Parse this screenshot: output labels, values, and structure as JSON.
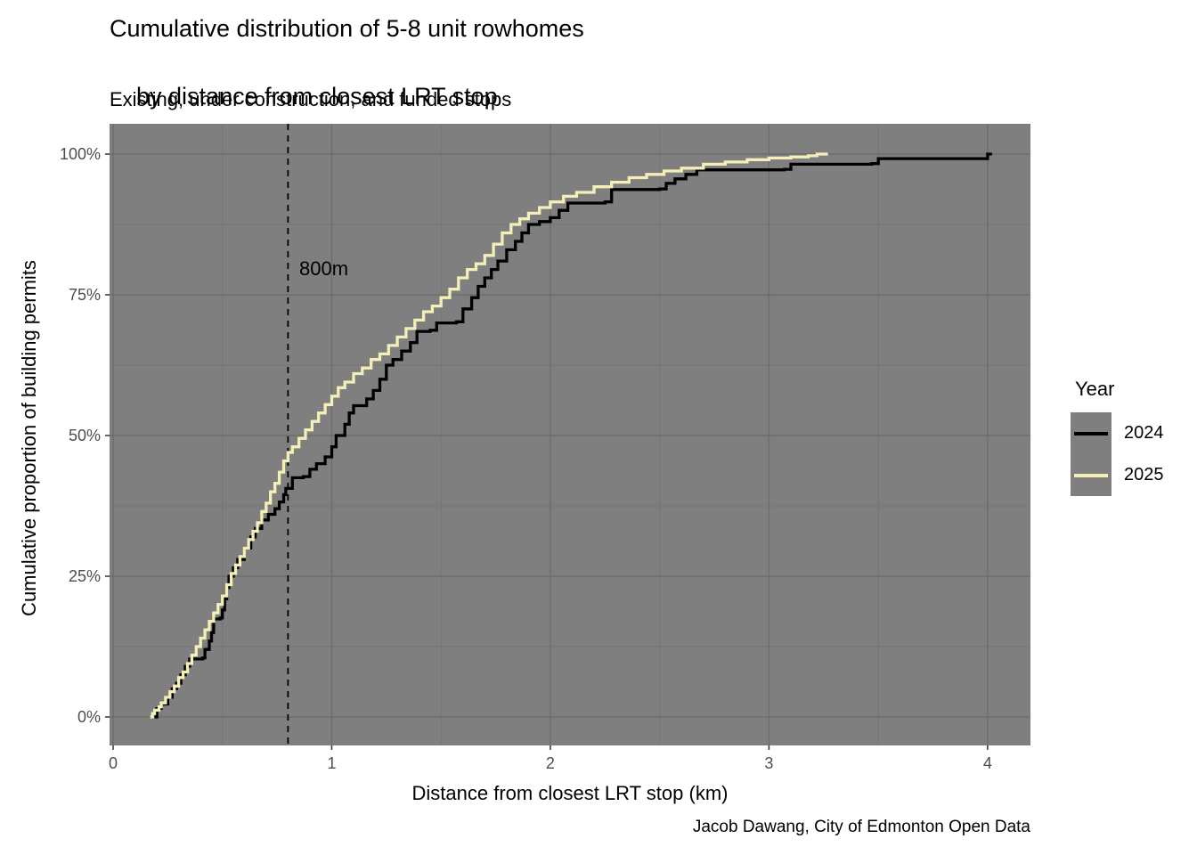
{
  "header": {
    "title_line1": "Cumulative distribution of 5-8 unit rowhomes",
    "title_line2": "by distance from closest LRT stop",
    "subtitle": "Existing, under construction, and funded stops"
  },
  "axes": {
    "x_title": "Distance from closest LRT stop (km)",
    "y_title": "Cumulative proportion of building permits"
  },
  "annotation": {
    "label": "800m"
  },
  "legend": {
    "title": "Year",
    "entries": [
      {
        "label": "2024",
        "color": "#000000"
      },
      {
        "label": "2025",
        "color": "#F3EFB7"
      }
    ]
  },
  "caption": "Jacob Dawang, City of Edmonton Open Data",
  "colors": {
    "panel_background": "#7F7F7F",
    "grid_major": "#6D6D6D",
    "grid_minor": "#747474",
    "tick_mark": "#333333",
    "tick_label": "#4D4D4D",
    "vline": "#000000",
    "series_2024": "#000000",
    "series_2025": "#F3EFB7"
  },
  "chart_data": {
    "type": "line",
    "subtype": "ecdf-step",
    "title": "Cumulative distribution of 5-8 unit rowhomes by distance from closest LRT stop",
    "subtitle": "Existing, under construction, and funded stops",
    "xlabel": "Distance from closest LRT stop (km)",
    "ylabel": "Cumulative proportion of building permits",
    "xlim": [
      -0.0163,
      4.196
    ],
    "ylim_pct": [
      -5.06,
      105.38
    ],
    "x_major_ticks": [
      0,
      1,
      2,
      3,
      4
    ],
    "x_tick_labels": [
      "0",
      "1",
      "2",
      "3",
      "4"
    ],
    "x_minor_ticks": [
      0.5,
      1.5,
      2.5,
      3.5
    ],
    "y_major_ticks": [
      0,
      25,
      50,
      75,
      100
    ],
    "y_tick_labels": [
      "0%",
      "25%",
      "50%",
      "75%",
      "100%"
    ],
    "y_minor_ticks": [
      12.5,
      37.5,
      62.5,
      87.5
    ],
    "grid": true,
    "legend_position": "right",
    "vline": {
      "x": 0.8,
      "label": "800m",
      "style": "dashed",
      "color": "#000000"
    },
    "series": [
      {
        "name": "2024",
        "color": "#000000",
        "points": [
          [
            0.19,
            0
          ],
          [
            0.2,
            1.5
          ],
          [
            0.22,
            2.3
          ],
          [
            0.25,
            3.5
          ],
          [
            0.27,
            5
          ],
          [
            0.29,
            6
          ],
          [
            0.31,
            7.5
          ],
          [
            0.33,
            9
          ],
          [
            0.35,
            10.3
          ],
          [
            0.41,
            10.5
          ],
          [
            0.42,
            12
          ],
          [
            0.44,
            13.5
          ],
          [
            0.45,
            15
          ],
          [
            0.46,
            17.4
          ],
          [
            0.49,
            17.6
          ],
          [
            0.5,
            19
          ],
          [
            0.51,
            21
          ],
          [
            0.52,
            23
          ],
          [
            0.53,
            25
          ],
          [
            0.55,
            26.5
          ],
          [
            0.57,
            28
          ],
          [
            0.6,
            30
          ],
          [
            0.63,
            32
          ],
          [
            0.65,
            33.5
          ],
          [
            0.68,
            35
          ],
          [
            0.71,
            36
          ],
          [
            0.74,
            37
          ],
          [
            0.76,
            38.2
          ],
          [
            0.78,
            39.5
          ],
          [
            0.79,
            40.6
          ],
          [
            0.82,
            42.5
          ],
          [
            0.87,
            42.7
          ],
          [
            0.9,
            44
          ],
          [
            0.93,
            45
          ],
          [
            0.97,
            46.2
          ],
          [
            1.0,
            48
          ],
          [
            1.02,
            50
          ],
          [
            1.06,
            52
          ],
          [
            1.08,
            54
          ],
          [
            1.1,
            55.3
          ],
          [
            1.16,
            56.5
          ],
          [
            1.19,
            58
          ],
          [
            1.22,
            60
          ],
          [
            1.25,
            62.5
          ],
          [
            1.28,
            63.5
          ],
          [
            1.32,
            65
          ],
          [
            1.36,
            66.5
          ],
          [
            1.39,
            68.5
          ],
          [
            1.45,
            68.7
          ],
          [
            1.48,
            70
          ],
          [
            1.57,
            70.2
          ],
          [
            1.6,
            72.5
          ],
          [
            1.64,
            74.5
          ],
          [
            1.67,
            76.5
          ],
          [
            1.7,
            78
          ],
          [
            1.73,
            79.5
          ],
          [
            1.76,
            81
          ],
          [
            1.8,
            83
          ],
          [
            1.84,
            84.5
          ],
          [
            1.87,
            86
          ],
          [
            1.9,
            87.5
          ],
          [
            1.95,
            88
          ],
          [
            2.0,
            88.7
          ],
          [
            2.04,
            90
          ],
          [
            2.08,
            91.3
          ],
          [
            2.25,
            91.5
          ],
          [
            2.28,
            93.7
          ],
          [
            2.5,
            93.8
          ],
          [
            2.53,
            94.8
          ],
          [
            2.57,
            95.6
          ],
          [
            2.62,
            96.4
          ],
          [
            2.67,
            97.2
          ],
          [
            3.07,
            97.3
          ],
          [
            3.1,
            98.2
          ],
          [
            3.47,
            98.3
          ],
          [
            3.5,
            99.2
          ],
          [
            4.0,
            100
          ],
          [
            4.02,
            100
          ]
        ]
      },
      {
        "name": "2025",
        "color": "#F3EFB7",
        "points": [
          [
            0.17,
            0
          ],
          [
            0.18,
            0.6
          ],
          [
            0.19,
            1.2
          ],
          [
            0.21,
            1.8
          ],
          [
            0.22,
            2.5
          ],
          [
            0.24,
            3.5
          ],
          [
            0.26,
            4.5
          ],
          [
            0.28,
            5.5
          ],
          [
            0.3,
            7
          ],
          [
            0.32,
            8
          ],
          [
            0.34,
            9.5
          ],
          [
            0.36,
            11
          ],
          [
            0.38,
            12.5
          ],
          [
            0.4,
            14
          ],
          [
            0.42,
            15.5
          ],
          [
            0.44,
            17
          ],
          [
            0.46,
            18.5
          ],
          [
            0.48,
            20
          ],
          [
            0.5,
            21.5
          ],
          [
            0.52,
            23.5
          ],
          [
            0.54,
            25.5
          ],
          [
            0.56,
            27
          ],
          [
            0.58,
            28.5
          ],
          [
            0.6,
            30
          ],
          [
            0.62,
            31.5
          ],
          [
            0.64,
            33
          ],
          [
            0.66,
            34.5
          ],
          [
            0.68,
            36.5
          ],
          [
            0.7,
            38
          ],
          [
            0.72,
            40
          ],
          [
            0.74,
            41.5
          ],
          [
            0.76,
            43.5
          ],
          [
            0.78,
            45.5
          ],
          [
            0.8,
            47
          ],
          [
            0.82,
            48
          ],
          [
            0.85,
            49.5
          ],
          [
            0.88,
            51
          ],
          [
            0.91,
            52.5
          ],
          [
            0.94,
            54
          ],
          [
            0.97,
            55.5
          ],
          [
            1.0,
            57
          ],
          [
            1.03,
            58.5
          ],
          [
            1.06,
            59.5
          ],
          [
            1.1,
            61
          ],
          [
            1.14,
            62
          ],
          [
            1.18,
            63.5
          ],
          [
            1.22,
            64.5
          ],
          [
            1.26,
            66
          ],
          [
            1.3,
            67.5
          ],
          [
            1.34,
            69
          ],
          [
            1.38,
            70.5
          ],
          [
            1.42,
            72
          ],
          [
            1.46,
            73
          ],
          [
            1.5,
            74.5
          ],
          [
            1.54,
            76
          ],
          [
            1.58,
            78
          ],
          [
            1.62,
            79.5
          ],
          [
            1.66,
            80.5
          ],
          [
            1.7,
            82
          ],
          [
            1.74,
            84
          ],
          [
            1.78,
            86
          ],
          [
            1.82,
            87.5
          ],
          [
            1.86,
            88.5
          ],
          [
            1.9,
            89.5
          ],
          [
            1.95,
            90.5
          ],
          [
            2.0,
            91.5
          ],
          [
            2.06,
            92.5
          ],
          [
            2.12,
            93.2
          ],
          [
            2.2,
            94.2
          ],
          [
            2.28,
            95
          ],
          [
            2.36,
            95.8
          ],
          [
            2.44,
            96.4
          ],
          [
            2.52,
            97
          ],
          [
            2.6,
            97.5
          ],
          [
            2.7,
            98.2
          ],
          [
            2.8,
            98.6
          ],
          [
            2.9,
            99
          ],
          [
            3.0,
            99.3
          ],
          [
            3.1,
            99.5
          ],
          [
            3.18,
            99.7
          ],
          [
            3.22,
            100
          ],
          [
            3.27,
            100
          ]
        ]
      }
    ]
  }
}
